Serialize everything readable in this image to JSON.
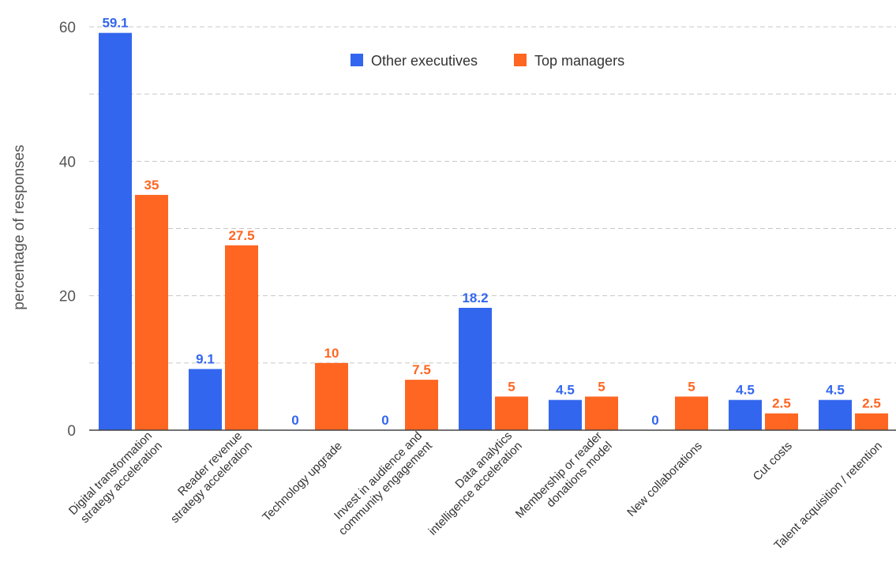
{
  "chart_data": {
    "type": "bar",
    "title": "",
    "xlabel": "",
    "ylabel": "percentage of responses",
    "ylim": [
      0,
      60
    ],
    "yticks": [
      0,
      20,
      40,
      60
    ],
    "grid": true,
    "legend_position": "top-center",
    "categories": [
      "Digital transformation\nstrategy acceleration",
      "Reader revenue\nstrategy acceleration",
      "Technology upgrade",
      "Invest in audience and\ncommunity engagement",
      "Data analytics\nintelligence acceleration",
      "Membership or reader\ndonations model",
      "New collaborations",
      "Cut costs",
      "Talent acquisition / retention"
    ],
    "series": [
      {
        "name": "Other executives",
        "color": "#3366ee",
        "values": [
          59.1,
          9.1,
          0,
          0,
          18.2,
          4.5,
          0,
          4.5,
          4.5
        ],
        "labels": [
          "59.1",
          "9.1",
          "0",
          "0",
          "18.2",
          "4.5",
          "0",
          "4.5",
          "4.5"
        ]
      },
      {
        "name": "Top managers",
        "color": "#ff6622",
        "values": [
          35,
          27.5,
          10,
          7.5,
          5,
          5,
          5,
          2.5,
          2.5
        ],
        "labels": [
          "35",
          "27.5",
          "10",
          "7.5",
          "5",
          "5",
          "5",
          "2.5",
          "2.5"
        ]
      }
    ]
  }
}
